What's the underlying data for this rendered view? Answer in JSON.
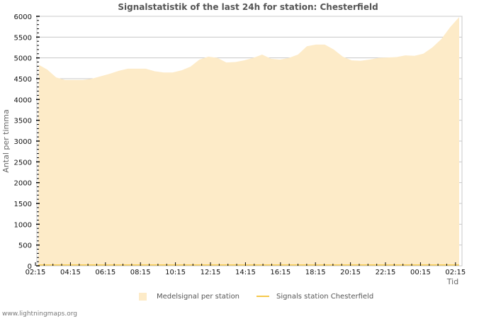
{
  "title": "Signalstatistik of the last 24h for station: Chesterfield",
  "y_axis": {
    "label": "Antal per timma",
    "ticks": [
      "0",
      "500",
      "1000",
      "1500",
      "2000",
      "2500",
      "3000",
      "3500",
      "4000",
      "4500",
      "5000",
      "5500",
      "6000"
    ]
  },
  "x_axis": {
    "label": "Tid",
    "ticks": [
      "02:15",
      "04:15",
      "06:15",
      "08:15",
      "10:15",
      "12:15",
      "14:15",
      "16:15",
      "18:15",
      "20:15",
      "22:15",
      "00:15",
      "02:15"
    ]
  },
  "legend": {
    "area_label": "Medelsignal per station",
    "line_label": "Signals station Chesterfield"
  },
  "footer": "www.lightningmaps.org",
  "colors": {
    "area": "#fdebc8",
    "line": "#f5c84c",
    "grid": "#c8c8c8"
  },
  "chart_data": {
    "type": "area",
    "title": "Signalstatistik of the last 24h for station: Chesterfield",
    "xlabel": "Tid",
    "ylabel": "Antal per timma",
    "ylim": [
      0,
      6000
    ],
    "grid": true,
    "legend_position": "bottom",
    "categories": [
      "02:15",
      "04:15",
      "06:15",
      "08:15",
      "10:15",
      "12:15",
      "14:15",
      "16:15",
      "18:15",
      "20:15",
      "22:15",
      "00:15",
      "02:15"
    ],
    "series": [
      {
        "name": "Medelsignal per station",
        "kind": "area",
        "x": [
          "02:30",
          "03:00",
          "03:30",
          "04:00",
          "04:30",
          "05:00",
          "05:30",
          "06:15",
          "06:45",
          "07:15",
          "07:45",
          "08:15",
          "08:45",
          "09:15",
          "09:45",
          "10:15",
          "10:45",
          "11:15",
          "11:45",
          "12:15",
          "12:45",
          "13:15",
          "13:45",
          "14:15",
          "14:45",
          "15:15",
          "15:45",
          "16:15",
          "16:45",
          "17:15",
          "17:45",
          "18:15",
          "18:45",
          "19:15",
          "19:45",
          "20:15",
          "20:45",
          "21:15",
          "21:45",
          "22:15",
          "22:45",
          "23:15",
          "23:45",
          "00:15",
          "00:45",
          "01:15",
          "01:45",
          "02:15"
        ],
        "values": [
          4840,
          4720,
          4530,
          4470,
          4470,
          4470,
          4500,
          4560,
          4620,
          4690,
          4740,
          4740,
          4740,
          4680,
          4650,
          4650,
          4700,
          4790,
          4960,
          5030,
          5000,
          4890,
          4900,
          4940,
          5000,
          5080,
          4980,
          4960,
          5000,
          5080,
          5280,
          5320,
          5320,
          5200,
          5030,
          4940,
          4930,
          4960,
          5000,
          5010,
          5020,
          5060,
          5050,
          5100,
          5250,
          5450,
          5740,
          5980
        ]
      },
      {
        "name": "Signals station Chesterfield",
        "kind": "line",
        "values": [
          0,
          0,
          0,
          0,
          0,
          0,
          0,
          0,
          0,
          0,
          0,
          0,
          0,
          0,
          0,
          0,
          0,
          0,
          0,
          0,
          0,
          0,
          0,
          0,
          0,
          0,
          0,
          0,
          0,
          0,
          0,
          0,
          0,
          0,
          0,
          0,
          0,
          0,
          0,
          0,
          0,
          0,
          0,
          0,
          0,
          0,
          0,
          0
        ]
      }
    ]
  }
}
